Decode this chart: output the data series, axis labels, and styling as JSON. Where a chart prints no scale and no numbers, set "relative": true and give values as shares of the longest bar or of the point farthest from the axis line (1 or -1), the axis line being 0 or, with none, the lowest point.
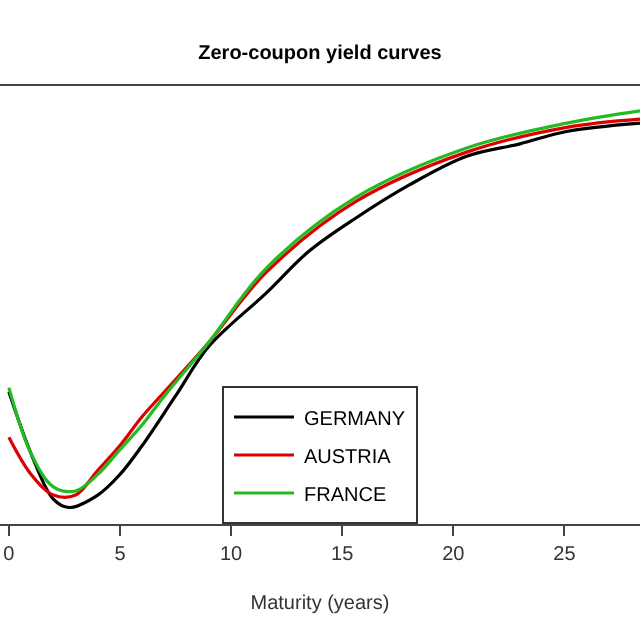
{
  "chart_data": {
    "type": "line",
    "title": "Zero-coupon yield curves",
    "xlabel": "Maturity (years)",
    "relative": true,
    "xlim": [
      -0.4,
      28.4
    ],
    "xticks": [
      0,
      5,
      10,
      15,
      20,
      25
    ],
    "legend": "bottom",
    "marker": "none",
    "line_style": "solid",
    "series": [
      {
        "name": "GERMANY",
        "color": "#000000",
        "x": [
          0,
          1,
          2,
          2.7,
          4,
          5,
          6,
          7.5,
          9,
          11.6,
          13.5,
          15.6,
          18,
          20.6,
          23,
          25.1,
          28.4
        ],
        "values": [
          0.32,
          0.17,
          0.06,
          0.04,
          0.07,
          0.12,
          0.19,
          0.31,
          0.43,
          0.56,
          0.66,
          0.74,
          0.82,
          0.89,
          0.92,
          0.95,
          0.97
        ]
      },
      {
        "name": "AUSTRIA",
        "color": "#dd0000",
        "x": [
          0,
          1,
          2,
          3,
          4,
          5,
          6,
          7,
          9,
          11.6,
          15.6,
          20.6,
          25.1,
          28.4
        ],
        "values": [
          0.21,
          0.12,
          0.07,
          0.07,
          0.13,
          0.19,
          0.26,
          0.32,
          0.44,
          0.61,
          0.78,
          0.9,
          0.96,
          0.98
        ]
      },
      {
        "name": "FRANCE",
        "color": "#22bb22",
        "x": [
          0,
          1,
          2,
          3,
          4,
          5,
          6,
          7,
          9,
          11.6,
          15.6,
          20.6,
          25.1,
          28.4
        ],
        "values": [
          0.33,
          0.17,
          0.09,
          0.08,
          0.12,
          0.18,
          0.24,
          0.31,
          0.44,
          0.62,
          0.79,
          0.91,
          0.97,
          1.0
        ]
      }
    ]
  }
}
